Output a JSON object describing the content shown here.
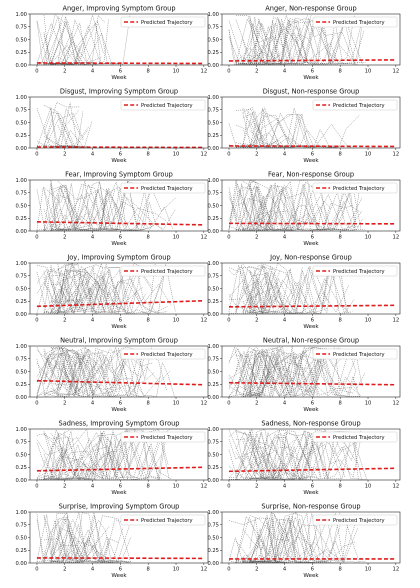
{
  "legend_label": "Predicted Trajectory",
  "x_label": "Week",
  "colors": {
    "predicted": "#e01b1b",
    "observed": "#555555"
  },
  "chart_data": [
    {
      "type": "line",
      "title": "Anger, Improving Symptom Group",
      "xlabel": "Week",
      "xlim": [
        -0.5,
        12.3
      ],
      "ylim": [
        0,
        1
      ],
      "xticks": [
        0,
        2,
        4,
        6,
        8,
        10,
        12
      ],
      "yticks": [
        0,
        0.25,
        0.5,
        0.75,
        1.0
      ],
      "legend": "top-right",
      "series": [
        {
          "name": "Predicted Trajectory",
          "x": [
            0,
            12
          ],
          "y": [
            0.04,
            0.03
          ]
        }
      ],
      "observed": {
        "max_week": 7,
        "n": 28,
        "peak": 1.0,
        "density": 0.35
      }
    },
    {
      "type": "line",
      "title": "Anger, Non-response Group",
      "xlabel": "Week",
      "xlim": [
        -0.5,
        12.3
      ],
      "ylim": [
        0,
        1
      ],
      "xticks": [
        0,
        2,
        4,
        6,
        8,
        10,
        12
      ],
      "yticks": [
        0,
        0.25,
        0.5,
        0.75,
        1.0
      ],
      "legend": "top-right",
      "series": [
        {
          "name": "Predicted Trajectory",
          "x": [
            0,
            12
          ],
          "y": [
            0.08,
            0.1
          ]
        }
      ],
      "observed": {
        "max_week": 10,
        "n": 30,
        "peak": 1.0,
        "density": 0.5
      }
    },
    {
      "type": "line",
      "title": "Disgust, Improving Symptom Group",
      "xlabel": "Week",
      "xlim": [
        -0.5,
        12.3
      ],
      "ylim": [
        0,
        1
      ],
      "xticks": [
        0,
        2,
        4,
        6,
        8,
        10,
        12
      ],
      "yticks": [
        0,
        0.25,
        0.5,
        0.75,
        1.0
      ],
      "legend": "top-right",
      "series": [
        {
          "name": "Predicted Trajectory",
          "x": [
            0,
            12
          ],
          "y": [
            0.02,
            0.01
          ]
        }
      ],
      "observed": {
        "max_week": 4,
        "n": 22,
        "peak": 0.9,
        "density": 0.3
      }
    },
    {
      "type": "line",
      "title": "Disgust, Non-response Group",
      "xlabel": "Week",
      "xlim": [
        -0.5,
        12.3
      ],
      "ylim": [
        0,
        1
      ],
      "xticks": [
        0,
        2,
        4,
        6,
        8,
        10,
        12
      ],
      "yticks": [
        0,
        0.25,
        0.5,
        0.75,
        1.0
      ],
      "legend": "top-right",
      "series": [
        {
          "name": "Predicted Trajectory",
          "x": [
            0,
            12
          ],
          "y": [
            0.04,
            0.03
          ]
        }
      ],
      "observed": {
        "max_week": 9.5,
        "n": 26,
        "peak": 0.8,
        "density": 0.3
      }
    },
    {
      "type": "line",
      "title": "Fear, Improving Symptom Group",
      "xlabel": "Week",
      "xlim": [
        -0.5,
        12.3
      ],
      "ylim": [
        0,
        1
      ],
      "xticks": [
        0,
        2,
        4,
        6,
        8,
        10,
        12
      ],
      "yticks": [
        0,
        0.25,
        0.5,
        0.75,
        1.0
      ],
      "legend": "top-right",
      "series": [
        {
          "name": "Predicted Trajectory",
          "x": [
            0,
            12
          ],
          "y": [
            0.18,
            0.12
          ]
        }
      ],
      "observed": {
        "max_week": 10,
        "n": 26,
        "peak": 1.0,
        "density": 0.5
      }
    },
    {
      "type": "line",
      "title": "Fear, Non-response Group",
      "xlabel": "Week",
      "xlim": [
        -0.5,
        12.3
      ],
      "ylim": [
        0,
        1
      ],
      "xticks": [
        0,
        2,
        4,
        6,
        8,
        10,
        12
      ],
      "yticks": [
        0,
        0.25,
        0.5,
        0.75,
        1.0
      ],
      "legend": "top-right",
      "series": [
        {
          "name": "Predicted Trajectory",
          "x": [
            0,
            12
          ],
          "y": [
            0.15,
            0.14
          ]
        }
      ],
      "observed": {
        "max_week": 10,
        "n": 30,
        "peak": 1.0,
        "density": 0.55
      }
    },
    {
      "type": "line",
      "title": "Joy, Improving Symptom Group",
      "xlabel": "Week",
      "xlim": [
        -0.5,
        12.3
      ],
      "ylim": [
        0,
        1
      ],
      "xticks": [
        0,
        2,
        4,
        6,
        8,
        10,
        12
      ],
      "yticks": [
        0,
        0.25,
        0.5,
        0.75,
        1.0
      ],
      "legend": "top-right",
      "series": [
        {
          "name": "Predicted Trajectory",
          "x": [
            0,
            12
          ],
          "y": [
            0.15,
            0.26
          ]
        }
      ],
      "observed": {
        "max_week": 10,
        "n": 32,
        "peak": 1.0,
        "density": 0.65
      }
    },
    {
      "type": "line",
      "title": "Joy, Non-response Group",
      "xlabel": "Week",
      "xlim": [
        -0.5,
        12.3
      ],
      "ylim": [
        0,
        1
      ],
      "xticks": [
        0,
        2,
        4,
        6,
        8,
        10,
        12
      ],
      "yticks": [
        0,
        0.25,
        0.5,
        0.75,
        1.0
      ],
      "legend": "top-right",
      "series": [
        {
          "name": "Predicted Trajectory",
          "x": [
            0,
            12
          ],
          "y": [
            0.14,
            0.17
          ]
        }
      ],
      "observed": {
        "max_week": 9,
        "n": 32,
        "peak": 1.0,
        "density": 0.6
      }
    },
    {
      "type": "line",
      "title": "Neutral, Improving Symptom Group",
      "xlabel": "Week",
      "xlim": [
        -0.5,
        12.3
      ],
      "ylim": [
        0,
        1
      ],
      "xticks": [
        0,
        2,
        4,
        6,
        8,
        10,
        12
      ],
      "yticks": [
        0,
        0.25,
        0.5,
        0.75,
        1.0
      ],
      "legend": "top-right",
      "series": [
        {
          "name": "Predicted Trajectory",
          "x": [
            0,
            12
          ],
          "y": [
            0.32,
            0.24
          ]
        }
      ],
      "observed": {
        "max_week": 10,
        "n": 34,
        "peak": 1.0,
        "density": 0.8
      }
    },
    {
      "type": "line",
      "title": "Neutral, Non-response Group",
      "xlabel": "Week",
      "xlim": [
        -0.5,
        12.3
      ],
      "ylim": [
        0,
        1
      ],
      "xticks": [
        0,
        2,
        4,
        6,
        8,
        10,
        12
      ],
      "yticks": [
        0,
        0.25,
        0.5,
        0.75,
        1.0
      ],
      "legend": "top-right",
      "series": [
        {
          "name": "Predicted Trajectory",
          "x": [
            0,
            12
          ],
          "y": [
            0.28,
            0.24
          ]
        }
      ],
      "observed": {
        "max_week": 10,
        "n": 34,
        "peak": 1.0,
        "density": 0.75
      }
    },
    {
      "type": "line",
      "title": "Sadness, Improving Symptom Group",
      "xlabel": "Week",
      "xlim": [
        -0.5,
        12.3
      ],
      "ylim": [
        0,
        1
      ],
      "xticks": [
        0,
        2,
        4,
        6,
        8,
        10,
        12
      ],
      "yticks": [
        0,
        0.25,
        0.5,
        0.75,
        1.0
      ],
      "legend": "top-right",
      "series": [
        {
          "name": "Predicted Trajectory",
          "x": [
            0,
            12
          ],
          "y": [
            0.18,
            0.25
          ]
        }
      ],
      "observed": {
        "max_week": 10,
        "n": 30,
        "peak": 1.0,
        "density": 0.6
      }
    },
    {
      "type": "line",
      "title": "Sadness, Non-response Group",
      "xlabel": "Week",
      "xlim": [
        -0.5,
        12.3
      ],
      "ylim": [
        0,
        1
      ],
      "xticks": [
        0,
        2,
        4,
        6,
        8,
        10,
        12
      ],
      "yticks": [
        0,
        0.25,
        0.5,
        0.75,
        1.0
      ],
      "legend": "top-right",
      "series": [
        {
          "name": "Predicted Trajectory",
          "x": [
            0,
            12
          ],
          "y": [
            0.17,
            0.23
          ]
        }
      ],
      "observed": {
        "max_week": 10,
        "n": 32,
        "peak": 1.0,
        "density": 0.6
      }
    },
    {
      "type": "line",
      "title": "Surprise, Improving Symptom Group",
      "xlabel": "Week",
      "xlim": [
        -0.5,
        12.3
      ],
      "ylim": [
        0,
        1
      ],
      "xticks": [
        0,
        2,
        4,
        6,
        8,
        10,
        12
      ],
      "yticks": [
        0,
        0.25,
        0.5,
        0.75,
        1.0
      ],
      "legend": "top-right",
      "series": [
        {
          "name": "Predicted Trajectory",
          "x": [
            0,
            12
          ],
          "y": [
            0.1,
            0.09
          ]
        }
      ],
      "observed": {
        "max_week": 7,
        "n": 26,
        "peak": 1.0,
        "density": 0.45
      }
    },
    {
      "type": "line",
      "title": "Surprise, Non-response Group",
      "xlabel": "Week",
      "xlim": [
        -0.5,
        12.3
      ],
      "ylim": [
        0,
        1
      ],
      "xticks": [
        0,
        2,
        4,
        6,
        8,
        10,
        12
      ],
      "yticks": [
        0,
        0.25,
        0.5,
        0.75,
        1.0
      ],
      "legend": "top-right",
      "series": [
        {
          "name": "Predicted Trajectory",
          "x": [
            0,
            12
          ],
          "y": [
            0.08,
            0.08
          ]
        }
      ],
      "observed": {
        "max_week": 10,
        "n": 28,
        "peak": 1.0,
        "density": 0.45
      }
    }
  ]
}
